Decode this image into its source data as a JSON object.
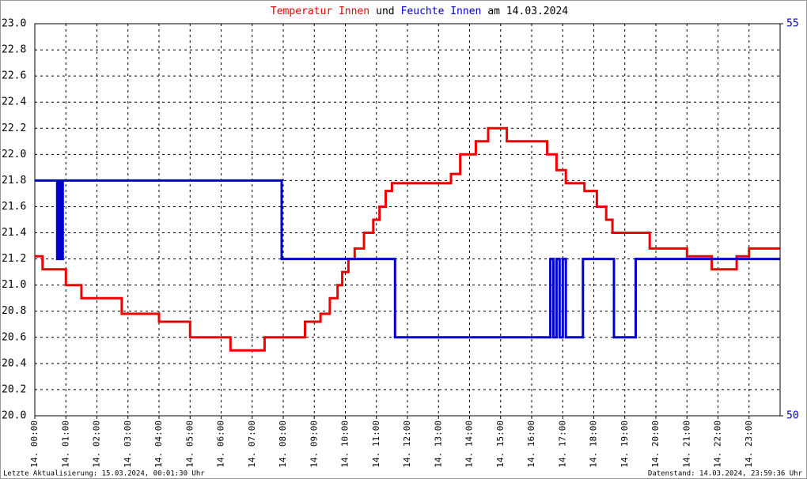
{
  "chart_data": {
    "type": "line",
    "title": {
      "joiner": "und",
      "suffix": "am 14.03.2024"
    },
    "xlim": [
      0,
      24
    ],
    "xticks": [
      {
        "value": 0,
        "label": "14. 00:00"
      },
      {
        "value": 1,
        "label": "14. 01:00"
      },
      {
        "value": 2,
        "label": "14. 02:00"
      },
      {
        "value": 3,
        "label": "14. 03:00"
      },
      {
        "value": 4,
        "label": "14. 04:00"
      },
      {
        "value": 5,
        "label": "14. 05:00"
      },
      {
        "value": 6,
        "label": "14. 06:00"
      },
      {
        "value": 7,
        "label": "14. 07:00"
      },
      {
        "value": 8,
        "label": "14. 08:00"
      },
      {
        "value": 9,
        "label": "14. 09:00"
      },
      {
        "value": 10,
        "label": "14. 10:00"
      },
      {
        "value": 11,
        "label": "14. 11:00"
      },
      {
        "value": 12,
        "label": "14. 12:00"
      },
      {
        "value": 13,
        "label": "14. 13:00"
      },
      {
        "value": 14,
        "label": "14. 14:00"
      },
      {
        "value": 15,
        "label": "14. 15:00"
      },
      {
        "value": 16,
        "label": "14. 16:00"
      },
      {
        "value": 17,
        "label": "14. 17:00"
      },
      {
        "value": 18,
        "label": "14. 18:00"
      },
      {
        "value": 19,
        "label": "14. 19:00"
      },
      {
        "value": 20,
        "label": "14. 20:00"
      },
      {
        "value": 21,
        "label": "14. 21:00"
      },
      {
        "value": 22,
        "label": "14. 22:00"
      },
      {
        "value": 23,
        "label": "14. 23:00"
      }
    ],
    "ylim": [
      20,
      23
    ],
    "yticks": [
      {
        "value": 20,
        "label": "20.0"
      },
      20.2,
      20.4,
      20.6,
      20.8,
      {
        "value": 21,
        "label": "21.0"
      },
      21.2,
      21.4,
      21.6,
      21.8,
      {
        "value": 22,
        "label": "22.0"
      },
      22.2,
      22.4,
      22.6,
      22.8,
      {
        "value": 23,
        "label": "23.0"
      }
    ],
    "y2lim": [
      50,
      55
    ],
    "y2ticks": [
      50,
      55
    ],
    "y2color": "#0000cc",
    "grid": true,
    "series": [
      {
        "name": "Temperatur Innen",
        "color": "#ee0000",
        "x": [
          0,
          0.25,
          0.25,
          1.0,
          1.0,
          1.5,
          1.5,
          2.8,
          2.8,
          4.0,
          4.0,
          5.0,
          5.0,
          6.3,
          6.3,
          7.4,
          7.4,
          8.7,
          8.7,
          9.2,
          9.2,
          9.5,
          9.5,
          9.75,
          9.75,
          9.9,
          9.9,
          10.1,
          10.1,
          10.3,
          10.3,
          10.6,
          10.6,
          10.9,
          10.9,
          11.1,
          11.1,
          11.3,
          11.3,
          11.5,
          11.5,
          13.4,
          13.4,
          13.7,
          13.7,
          14.2,
          14.2,
          14.6,
          14.6,
          15.2,
          15.2,
          16.5,
          16.5,
          16.8,
          16.8,
          17.1,
          17.1,
          17.7,
          17.7,
          18.1,
          18.1,
          18.4,
          18.4,
          18.6,
          18.6,
          19.8,
          19.8,
          21.0,
          21.0,
          21.8,
          21.8,
          22.6,
          22.6,
          23.0,
          23.0,
          23.99
        ],
        "values": [
          21.22,
          21.22,
          21.12,
          21.12,
          21.0,
          21.0,
          20.9,
          20.9,
          20.78,
          20.78,
          20.72,
          20.72,
          20.6,
          20.6,
          20.5,
          20.5,
          20.6,
          20.6,
          20.72,
          20.72,
          20.78,
          20.78,
          20.9,
          20.9,
          21.0,
          21.0,
          21.1,
          21.1,
          21.2,
          21.2,
          21.28,
          21.28,
          21.4,
          21.4,
          21.5,
          21.5,
          21.6,
          21.6,
          21.72,
          21.72,
          21.78,
          21.78,
          21.85,
          21.85,
          22.0,
          22.0,
          22.1,
          22.1,
          22.2,
          22.2,
          22.1,
          22.1,
          22.0,
          22.0,
          21.88,
          21.88,
          21.78,
          21.78,
          21.72,
          21.72,
          21.6,
          21.6,
          21.5,
          21.5,
          21.4,
          21.4,
          21.28,
          21.28,
          21.22,
          21.22,
          21.12,
          21.12,
          21.22,
          21.22,
          21.28,
          21.28
        ]
      },
      {
        "name": "Feuchte Innen",
        "color": "#0000cc",
        "axis": "y2",
        "x": [
          0,
          0.72,
          0.72,
          0.78,
          0.78,
          0.85,
          0.85,
          0.9,
          0.9,
          7.95,
          7.95,
          11.6,
          11.6,
          16.6,
          16.6,
          16.7,
          16.7,
          16.8,
          16.8,
          16.9,
          16.9,
          17.0,
          17.0,
          17.1,
          17.1,
          17.65,
          17.65,
          18.65,
          18.65,
          19.35,
          19.35,
          23.99
        ],
        "values": [
          53,
          53,
          52,
          52,
          53,
          53,
          52,
          52,
          53,
          53,
          52,
          52,
          51,
          51,
          52,
          52,
          51,
          51,
          52,
          52,
          51,
          51,
          52,
          52,
          51,
          51,
          52,
          52,
          51,
          51,
          52,
          52
        ]
      }
    ]
  },
  "footer": {
    "left": "Letzte Aktualisierung: 15.03.2024, 00:01:30 Uhr",
    "right": "Datenstand: 14.03.2024, 23:59:36 Uhr"
  }
}
